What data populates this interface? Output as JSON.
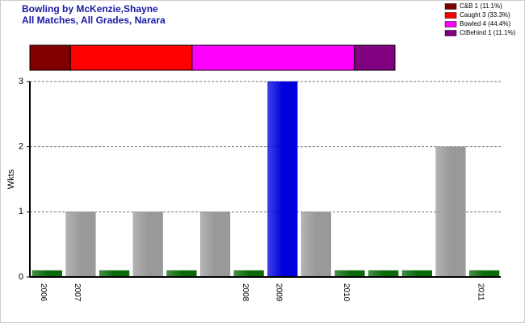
{
  "chart_data": [
    {
      "type": "bar",
      "title": "Bowling by McKenzie,Shayne",
      "subtitle": "All Matches, All Grades, Narara",
      "y_label": "Wkts",
      "categories": [
        "2006",
        "2007",
        null,
        null,
        null,
        null,
        "2008",
        "2009",
        null,
        "2010",
        null,
        null,
        null,
        "2011"
      ],
      "values": [
        0,
        1,
        0,
        1,
        0,
        1,
        0,
        3,
        1,
        0,
        0,
        0,
        2,
        0
      ],
      "colors": [
        "#0a6a0a",
        "#999999",
        "#0a6a0a",
        "#999999",
        "#0a6a0a",
        "#999999",
        "#0a6a0a",
        "#0000dd",
        "#999999",
        "#0a6a0a",
        "#0a6a0a",
        "#0a6a0a",
        "#999999",
        "#0a6a0a"
      ],
      "ylim": [
        0,
        3
      ],
      "yticks": [
        0,
        1,
        2,
        3
      ],
      "grid": true
    },
    {
      "type": "stacked-hbar",
      "series": [
        {
          "name": "C&B 1 (11.1%)",
          "color": "#800000",
          "values": [
            1
          ]
        },
        {
          "name": "Caught 3 (33.3%)",
          "color": "#ff0000",
          "values": [
            3
          ]
        },
        {
          "name": "Bowled 4 (44.4%)",
          "color": "#ff00ff",
          "values": [
            4
          ]
        },
        {
          "name": "CtBehind 1 (11.1%)",
          "color": "#800080",
          "values": [
            1
          ]
        }
      ],
      "legend": "top-right"
    }
  ]
}
